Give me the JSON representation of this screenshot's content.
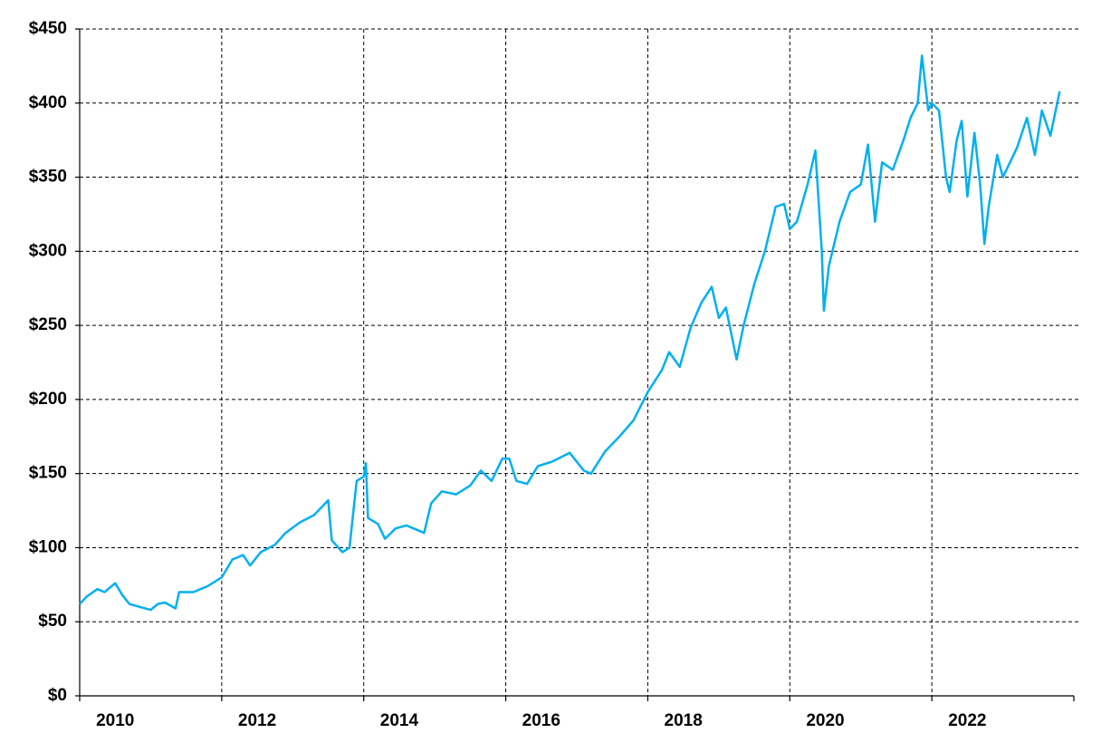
{
  "chart_data": {
    "type": "line",
    "series": [
      {
        "color": "#00b0f0",
        "x": [
          2010.0,
          2010.1,
          2010.25,
          2010.35,
          2010.5,
          2010.6,
          2010.7,
          2010.85,
          2011.0,
          2011.1,
          2011.2,
          2011.35,
          2011.4,
          2011.6,
          2011.8,
          2012.0,
          2012.15,
          2012.3,
          2012.4,
          2012.55,
          2012.75,
          2012.9,
          2013.1,
          2013.3,
          2013.5,
          2013.55,
          2013.7,
          2013.8,
          2013.9,
          2014.0,
          2014.03,
          2014.06,
          2014.2,
          2014.3,
          2014.45,
          2014.6,
          2014.75,
          2014.85,
          2014.95,
          2015.1,
          2015.3,
          2015.5,
          2015.65,
          2015.8,
          2015.95,
          2016.05,
          2016.15,
          2016.3,
          2016.45,
          2016.65,
          2016.9,
          2017.1,
          2017.2,
          2017.4,
          2017.6,
          2017.8,
          2018.0,
          2018.2,
          2018.3,
          2018.45,
          2018.6,
          2018.75,
          2018.9,
          2019.0,
          2019.1,
          2019.25,
          2019.35,
          2019.5,
          2019.65,
          2019.8,
          2019.92,
          2020.0,
          2020.1,
          2020.25,
          2020.36,
          2020.45,
          2020.48,
          2020.55,
          2020.7,
          2020.85,
          2021.0,
          2021.1,
          2021.2,
          2021.3,
          2021.45,
          2021.6,
          2021.7,
          2021.8,
          2021.86,
          2021.95,
          2022.0,
          2022.1,
          2022.2,
          2022.25,
          2022.35,
          2022.42,
          2022.5,
          2022.6,
          2022.68,
          2022.74,
          2022.8,
          2022.92,
          2023.0,
          2023.2,
          2023.34,
          2023.45,
          2023.55,
          2023.67,
          2023.8
        ],
        "values": [
          62,
          67,
          72,
          70,
          76,
          68,
          62,
          60,
          58,
          62,
          63,
          59,
          70,
          70,
          74,
          80,
          92,
          95,
          88,
          97,
          102,
          110,
          117,
          122,
          132,
          105,
          97,
          100,
          145,
          148,
          157,
          120,
          116,
          106,
          113,
          115,
          112,
          110,
          130,
          138,
          136,
          142,
          152,
          145,
          160,
          160,
          145,
          143,
          155,
          158,
          164,
          152,
          150,
          165,
          175,
          186,
          205,
          220,
          232,
          222,
          248,
          265,
          276,
          255,
          262,
          227,
          250,
          278,
          300,
          330,
          332,
          315,
          320,
          345,
          368,
          300,
          260,
          290,
          320,
          340,
          345,
          372,
          320,
          360,
          355,
          375,
          390,
          400,
          432,
          395,
          400,
          395,
          350,
          340,
          375,
          388,
          337,
          380,
          345,
          305,
          330,
          365,
          350,
          370,
          390,
          365,
          395,
          378,
          408
        ]
      }
    ],
    "xlim": [
      2010,
      2024
    ],
    "xticks": [
      2010,
      2012,
      2014,
      2016,
      2018,
      2020,
      2022
    ],
    "ylim": [
      0,
      450
    ],
    "yticks": [
      {
        "value": 0,
        "label": "$0"
      },
      {
        "value": 50,
        "label": "$50"
      },
      {
        "value": 100,
        "label": "$100"
      },
      {
        "value": 150,
        "label": "$150"
      },
      {
        "value": 200,
        "label": "$200"
      },
      {
        "value": 250,
        "label": "$250"
      },
      {
        "value": 300,
        "label": "$300"
      },
      {
        "value": 350,
        "label": "$350"
      },
      {
        "value": 400,
        "label": "$400"
      },
      {
        "value": 450,
        "label": "$450"
      }
    ],
    "grid": true
  }
}
